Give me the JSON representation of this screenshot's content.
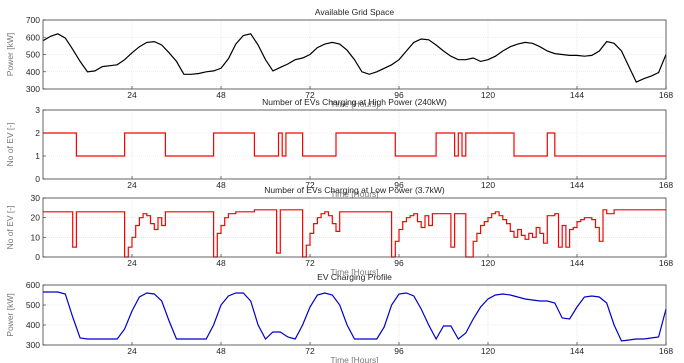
{
  "chart_data": [
    {
      "type": "line",
      "title": "Available Grid Space",
      "xlabel": "Time [Hours]",
      "ylabel": "Power [kW]",
      "xlim": [
        0,
        168
      ],
      "ylim": [
        300,
        700
      ],
      "xticks": [
        24,
        48,
        72,
        96,
        120,
        144,
        168
      ],
      "yticks": [
        300,
        400,
        500,
        600,
        700
      ],
      "grid": true,
      "color": "#000000",
      "step": false,
      "x": [
        0,
        2,
        4,
        6,
        8,
        10,
        12,
        14,
        16,
        18,
        20,
        22,
        24,
        26,
        28,
        30,
        32,
        34,
        36,
        38,
        40,
        42,
        44,
        46,
        48,
        50,
        52,
        54,
        56,
        58,
        60,
        62,
        64,
        66,
        68,
        70,
        72,
        74,
        76,
        78,
        80,
        82,
        84,
        86,
        88,
        90,
        92,
        94,
        96,
        98,
        100,
        102,
        104,
        106,
        108,
        110,
        112,
        114,
        116,
        118,
        120,
        122,
        124,
        126,
        128,
        130,
        132,
        134,
        136,
        138,
        140,
        142,
        144,
        146,
        148,
        150,
        152,
        154,
        156,
        158,
        160,
        162,
        164,
        166,
        168
      ],
      "y": [
        580,
        605,
        620,
        595,
        530,
        460,
        400,
        405,
        430,
        435,
        440,
        470,
        510,
        545,
        570,
        575,
        555,
        510,
        460,
        385,
        385,
        390,
        400,
        405,
        420,
        475,
        560,
        610,
        620,
        555,
        470,
        405,
        425,
        445,
        470,
        480,
        500,
        540,
        560,
        570,
        560,
        525,
        470,
        400,
        385,
        400,
        420,
        440,
        470,
        520,
        570,
        590,
        585,
        555,
        520,
        490,
        470,
        470,
        480,
        460,
        470,
        490,
        520,
        545,
        560,
        570,
        565,
        545,
        520,
        505,
        500,
        495,
        495,
        490,
        495,
        520,
        575,
        565,
        520,
        430,
        340,
        360,
        375,
        395,
        500
      ]
    },
    {
      "type": "line",
      "title": "Number of EVs Charging at High Power (240kW)",
      "xlabel": "Time [Hours]",
      "ylabel": "No of EV [-]",
      "xlim": [
        0,
        168
      ],
      "ylim": [
        0,
        3
      ],
      "xticks": [
        24,
        48,
        72,
        96,
        120,
        144,
        168
      ],
      "yticks": [
        0,
        1,
        2,
        3
      ],
      "grid": true,
      "color": "#ff0000",
      "step": true,
      "x": [
        0,
        9,
        22,
        33,
        46,
        57,
        63.5,
        64.5,
        65.5,
        70,
        79,
        95,
        106,
        111,
        112,
        113,
        114,
        127,
        136,
        138,
        151
      ],
      "y": [
        2,
        1,
        2,
        1,
        2,
        1,
        2,
        1,
        2,
        1,
        2,
        1,
        2,
        1,
        2,
        1,
        2,
        1,
        2,
        1,
        1
      ]
    },
    {
      "type": "line",
      "title": "Number of EVs Charging at Low Power (3.7kW)",
      "xlabel": "Time [Hours]",
      "ylabel": "No of EV [-]",
      "xlim": [
        0,
        168
      ],
      "ylim": [
        0,
        30
      ],
      "xticks": [
        24,
        48,
        72,
        96,
        120,
        144,
        168
      ],
      "yticks": [
        0,
        10,
        20,
        30
      ],
      "grid": true,
      "color": "#ff0000",
      "step": true,
      "x": [
        0,
        8,
        9,
        10,
        22,
        23,
        24,
        25,
        26,
        27,
        28,
        29,
        30,
        31,
        32,
        33,
        46,
        47,
        48,
        49,
        50,
        51,
        52,
        53,
        57,
        59,
        63,
        64,
        65,
        66,
        67,
        70,
        71,
        72,
        73,
        74,
        75,
        76,
        77,
        78,
        79,
        80,
        81,
        94,
        95,
        96,
        97,
        98,
        99,
        100,
        101,
        102,
        103,
        104,
        105,
        106,
        110,
        111,
        112,
        114,
        116,
        117,
        118,
        119,
        120,
        121,
        122,
        123,
        124,
        125,
        126,
        127,
        128,
        129,
        130,
        131,
        132,
        133,
        134,
        135,
        136,
        137,
        138,
        139,
        140,
        141,
        142,
        143,
        144,
        145,
        146,
        147,
        148,
        149,
        150,
        151,
        152,
        153,
        154,
        168
      ],
      "y": [
        23,
        5,
        23,
        23,
        0,
        5,
        10,
        16,
        20,
        22,
        21,
        17,
        14,
        20,
        16,
        23,
        0,
        12,
        16,
        20,
        22,
        22,
        23,
        23,
        24,
        24,
        2,
        24,
        24,
        24,
        24,
        0,
        6,
        12,
        17,
        20,
        22,
        23,
        21,
        17,
        13,
        23,
        23,
        0,
        8,
        14,
        18,
        20,
        21,
        22,
        18,
        15,
        21,
        16,
        22,
        22,
        5,
        22,
        22,
        0,
        8,
        12,
        16,
        18,
        20,
        22,
        23,
        21,
        19,
        17,
        13,
        10,
        14,
        11,
        9,
        12,
        10,
        15,
        12,
        7,
        21,
        21,
        22,
        5,
        16,
        5,
        14,
        15,
        18,
        19,
        20,
        20,
        19,
        15,
        8,
        24,
        22,
        22,
        24,
        24
      ]
    },
    {
      "type": "line",
      "title": "EV Charging Profile",
      "xlabel": "Time [Hours]",
      "ylabel": "Power [kW]",
      "xlim": [
        0,
        168
      ],
      "ylim": [
        300,
        600
      ],
      "xticks": [
        24,
        48,
        72,
        96,
        120,
        144,
        168
      ],
      "yticks": [
        300,
        400,
        500,
        600
      ],
      "grid": true,
      "color": "#0000cc",
      "step": false,
      "x": [
        0,
        2,
        4,
        6,
        8,
        10,
        12,
        14,
        16,
        18,
        20,
        22,
        24,
        26,
        28,
        30,
        32,
        34,
        36,
        38,
        40,
        42,
        44,
        46,
        48,
        50,
        52,
        54,
        56,
        58,
        60,
        62,
        64,
        66,
        68,
        70,
        72,
        74,
        76,
        78,
        80,
        82,
        84,
        86,
        88,
        90,
        92,
        94,
        96,
        98,
        100,
        102,
        104,
        106,
        108,
        110,
        112,
        114,
        116,
        118,
        120,
        122,
        124,
        126,
        128,
        130,
        132,
        134,
        136,
        138,
        140,
        142,
        144,
        146,
        148,
        150,
        152,
        154,
        156,
        158,
        160,
        162,
        164,
        166,
        168
      ],
      "y": [
        565,
        565,
        565,
        555,
        440,
        335,
        330,
        330,
        330,
        330,
        330,
        380,
        470,
        540,
        560,
        555,
        520,
        420,
        330,
        330,
        330,
        330,
        330,
        400,
        500,
        545,
        560,
        560,
        520,
        400,
        330,
        365,
        365,
        340,
        330,
        400,
        490,
        550,
        560,
        550,
        500,
        400,
        330,
        330,
        330,
        330,
        390,
        500,
        555,
        560,
        545,
        480,
        400,
        330,
        395,
        395,
        330,
        360,
        430,
        490,
        530,
        550,
        555,
        550,
        540,
        530,
        525,
        520,
        520,
        510,
        435,
        430,
        490,
        540,
        545,
        540,
        510,
        400,
        320,
        325,
        330,
        330,
        335,
        340,
        480
      ]
    }
  ]
}
